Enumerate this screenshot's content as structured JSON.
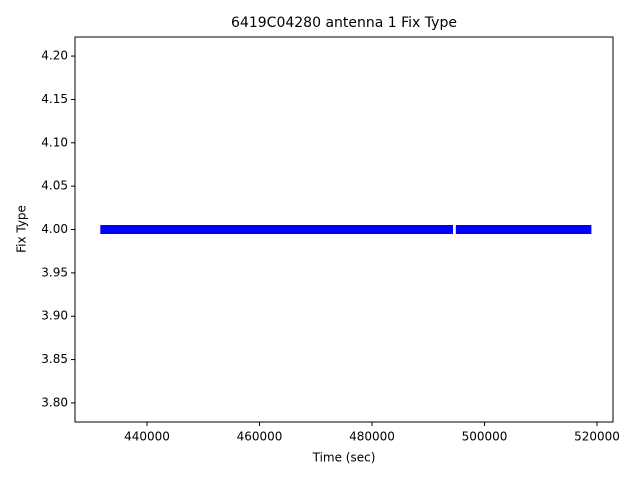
{
  "chart_data": {
    "type": "line",
    "title": "6419C04280 antenna 1 Fix Type",
    "xlabel": "Time (sec)",
    "ylabel": "Fix Type",
    "x": [
      431700,
      494400,
      494700,
      494900,
      519000
    ],
    "series": [
      {
        "color": "#0000ff",
        "values": [
          4,
          4,
          null,
          4,
          4
        ]
      }
    ],
    "xlim": [
      427200,
      522840
    ],
    "ylim": [
      3.778,
      4.222
    ],
    "xticks": [
      440000,
      460000,
      480000,
      500000,
      520000
    ],
    "yticks": [
      {
        "value": 3.8,
        "label": "3.80"
      },
      3.85,
      {
        "value": 3.9,
        "label": "3.90"
      },
      3.95,
      {
        "value": 4.0,
        "label": "4.00"
      },
      4.05,
      {
        "value": 4.1,
        "label": "4.10"
      },
      4.15,
      {
        "value": 4.2,
        "label": "4.20"
      }
    ],
    "grid": false
  }
}
